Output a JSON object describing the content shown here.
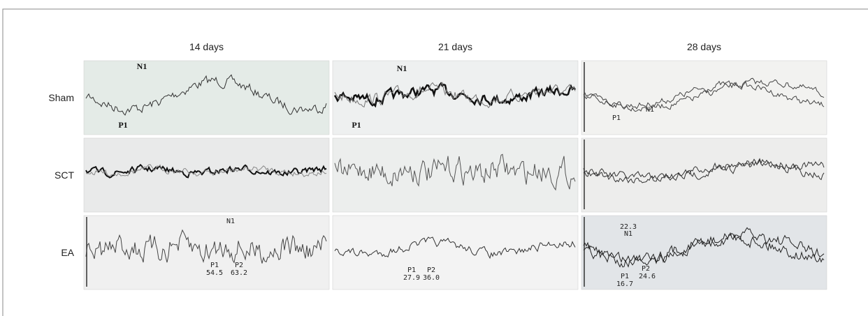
{
  "figure": {
    "columns": [
      "14 days",
      "21 days",
      "28 days"
    ],
    "rows": [
      "Sham",
      "SCT",
      "EA"
    ],
    "panels": [
      {
        "annotations": [
          "N1",
          "P1"
        ]
      },
      {
        "annotations": [
          "N1",
          "P1"
        ]
      },
      {
        "annotations": [
          "N1",
          "P1"
        ]
      },
      {
        "annotations": []
      },
      {
        "annotations": []
      },
      {
        "annotations": []
      },
      {
        "annotations": [
          "N1",
          "P1",
          "54.5",
          "P2",
          "63.2"
        ]
      },
      {
        "annotations": [
          "P1",
          "27.9",
          "P2",
          "36.0"
        ]
      },
      {
        "annotations": [
          "22.3",
          "N1",
          "P2",
          "24.6",
          "P1",
          "16.7"
        ]
      }
    ]
  }
}
